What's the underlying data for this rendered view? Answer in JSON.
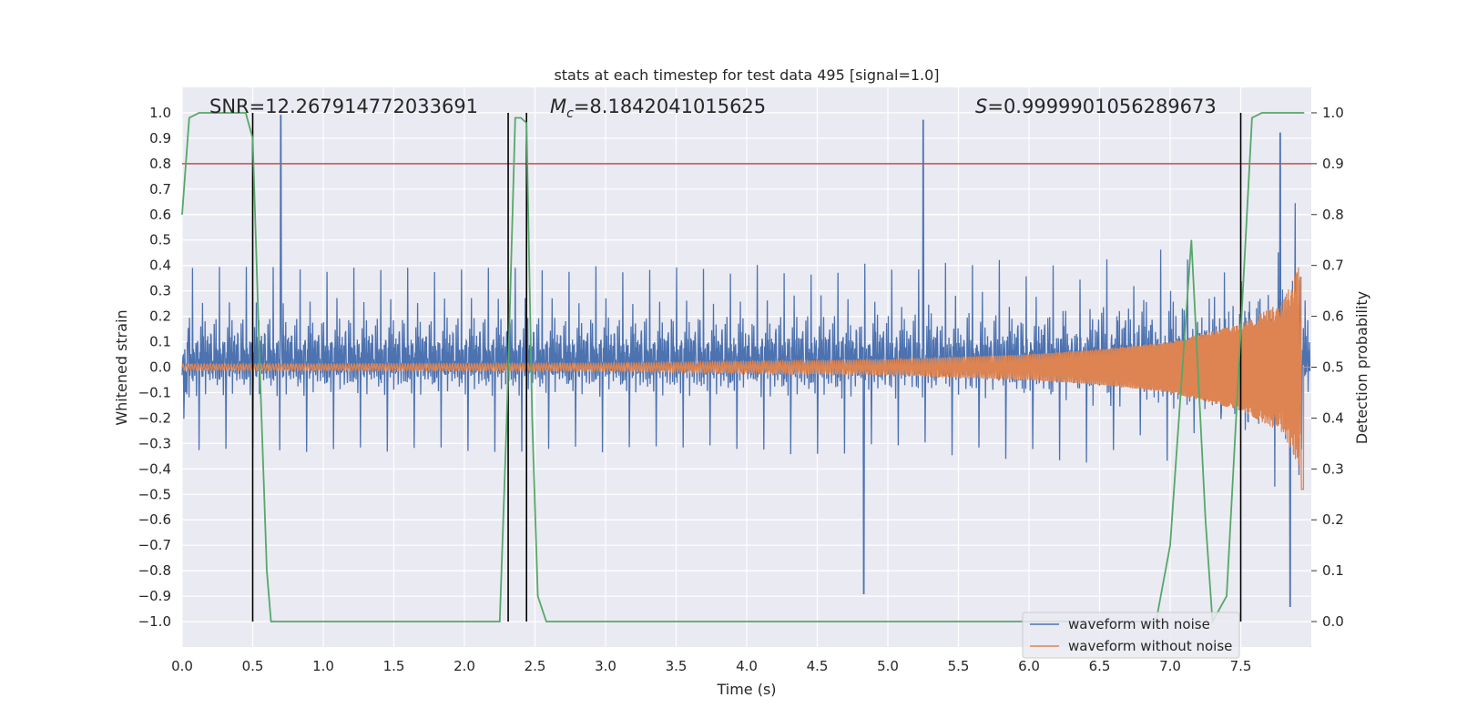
{
  "chart_data": {
    "type": "line",
    "title": "stats at each timestep for test data 495 [signal=1.0]",
    "xlabel": "Time (s)",
    "ylabel": "Whitened strain",
    "y2label": "Detection probability",
    "xlim": [
      0.0,
      8.0
    ],
    "ylim": [
      -1.1,
      1.1
    ],
    "y2lim": [
      -0.05,
      1.05
    ],
    "xticks": [
      "0.0",
      "0.5",
      "1.0",
      "1.5",
      "2.0",
      "2.5",
      "3.0",
      "3.5",
      "4.0",
      "4.5",
      "5.0",
      "5.5",
      "6.0",
      "6.5",
      "7.0",
      "7.5"
    ],
    "yticks": [
      "1.0",
      "0.9",
      "0.8",
      "0.7",
      "0.6",
      "0.5",
      "0.4",
      "0.3",
      "0.2",
      "0.1",
      "0.0",
      "−0.1",
      "−0.2",
      "−0.3",
      "−0.4",
      "−0.5",
      "−0.6",
      "−0.7",
      "−0.8",
      "−0.9",
      "−1.0"
    ],
    "y2ticks": [
      "1.0",
      "0.9",
      "0.8",
      "0.7",
      "0.6",
      "0.5",
      "0.4",
      "0.3",
      "0.2",
      "0.1",
      "0.0"
    ],
    "annotations": {
      "snr": "SNR=12.267914772033691",
      "mc_symbol": "M",
      "mc_sub": "c",
      "mc_value": "=8.1842041015625",
      "s_symbol": "S",
      "s_value": "=0.9999901056289673"
    },
    "threshold": {
      "axis": "y2",
      "value": 0.9,
      "color": "#c44e52"
    },
    "vertical_lines": [
      0.5,
      2.31,
      2.44,
      7.5
    ],
    "series": [
      {
        "name": "waveform with noise",
        "color": "#4c72b0",
        "axis": "y",
        "description": "dense noisy strain, mostly within ±0.4 with spikes up to ~1.0",
        "peaks": [
          [
            0.7,
            0.99
          ],
          [
            5.25,
            0.97
          ],
          [
            7.78,
            0.92
          ],
          [
            4.83,
            -0.89
          ],
          [
            7.85,
            -0.94
          ]
        ]
      },
      {
        "name": "waveform without noise",
        "color": "#dd8452",
        "axis": "y",
        "description": "chirp signal, amplitude grows from ~0.01 to ~0.43 before merger near 7.93 s",
        "amplitude_envelope": [
          [
            0.0,
            0.012
          ],
          [
            3.0,
            0.015
          ],
          [
            5.0,
            0.03
          ],
          [
            6.0,
            0.05
          ],
          [
            6.5,
            0.07
          ],
          [
            7.0,
            0.1
          ],
          [
            7.5,
            0.17
          ],
          [
            7.8,
            0.26
          ],
          [
            7.9,
            0.38
          ],
          [
            7.93,
            0.43
          ]
        ]
      },
      {
        "name": "detection probability",
        "color": "#55a868",
        "axis": "y2",
        "x": [
          0.0,
          0.05,
          0.12,
          0.25,
          0.45,
          0.5,
          0.55,
          0.6,
          0.63,
          1.0,
          2.0,
          2.25,
          2.3,
          2.36,
          2.4,
          2.44,
          2.48,
          2.52,
          2.58,
          3.0,
          4.0,
          5.0,
          6.0,
          6.9,
          7.0,
          7.1,
          7.15,
          7.25,
          7.3,
          7.4,
          7.5,
          7.58,
          7.65,
          7.8,
          7.95
        ],
        "y": [
          0.8,
          0.99,
          1.0,
          1.0,
          1.0,
          0.95,
          0.5,
          0.1,
          0.0,
          0.0,
          0.0,
          0.0,
          0.4,
          0.99,
          0.99,
          0.98,
          0.4,
          0.05,
          0.0,
          0.0,
          0.0,
          0.0,
          0.0,
          0.0,
          0.15,
          0.55,
          0.75,
          0.2,
          0.0,
          0.05,
          0.57,
          0.99,
          1.0,
          1.0,
          1.0
        ]
      }
    ],
    "legend": {
      "position": "lower-right",
      "entries": [
        "waveform with noise",
        "waveform without noise"
      ]
    }
  }
}
